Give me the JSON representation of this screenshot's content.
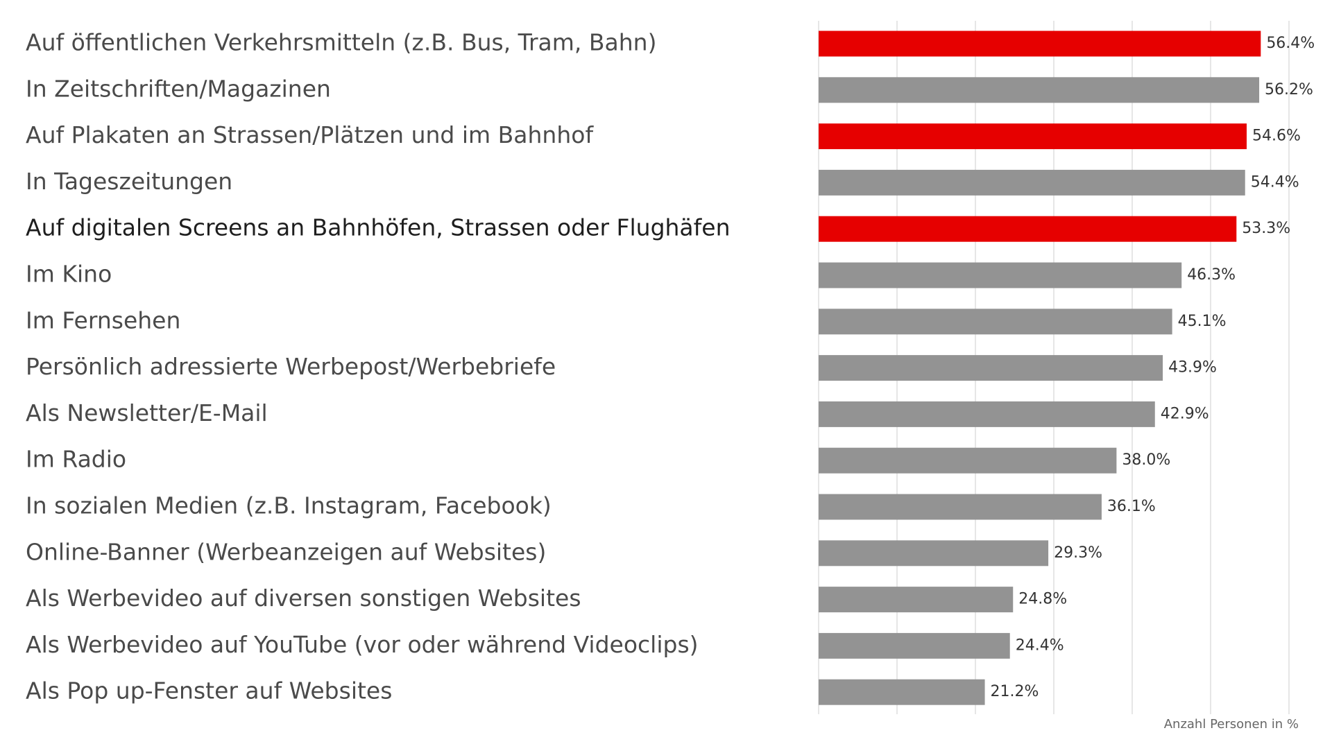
{
  "chart_data": {
    "type": "bar",
    "orientation": "horizontal",
    "title": "",
    "xlabel": "Anzahl Personen in %",
    "ylabel": "",
    "xlim": [
      0,
      60
    ],
    "grid": true,
    "highlight_color": "#e60000",
    "default_color": "#939393",
    "categories": [
      "Auf öffentlichen Verkehrsmitteln (z.B. Bus, Tram, Bahn)",
      "In Zeitschriften/Magazinen",
      "Auf Plakaten an Strassen/Plätzen und im Bahnhof",
      "In Tageszeitungen",
      "Auf digitalen Screens an Bahnhöfen, Strassen oder Flughäfen",
      "Im Kino",
      "Im Fernsehen",
      "Persönlich adressierte Werbepost/Werbebriefe",
      "Als Newsletter/E-Mail",
      "Im Radio",
      "In sozialen Medien (z.B. Instagram, Facebook)",
      "Online-Banner (Werbeanzeigen auf Websites)",
      "Als Werbevideo auf diversen sonstigen Websites",
      "Als Werbevideo auf YouTube (vor oder während Videoclips)",
      "Als Pop up-Fenster auf Websites"
    ],
    "values": [
      56.4,
      56.2,
      54.6,
      54.4,
      53.3,
      46.3,
      45.1,
      43.9,
      42.9,
      38.0,
      36.1,
      29.3,
      24.8,
      24.4,
      21.2
    ],
    "value_labels": [
      "56.4%",
      "56.2%",
      "54.6%",
      "54.4%",
      "53.3%",
      "46.3%",
      "45.1%",
      "43.9%",
      "42.9%",
      "38.0%",
      "36.1%",
      "29.3%",
      "24.8%",
      "24.4%",
      "21.2%"
    ],
    "highlighted": [
      true,
      false,
      true,
      false,
      true,
      false,
      false,
      false,
      false,
      false,
      false,
      false,
      false,
      false,
      false
    ]
  }
}
